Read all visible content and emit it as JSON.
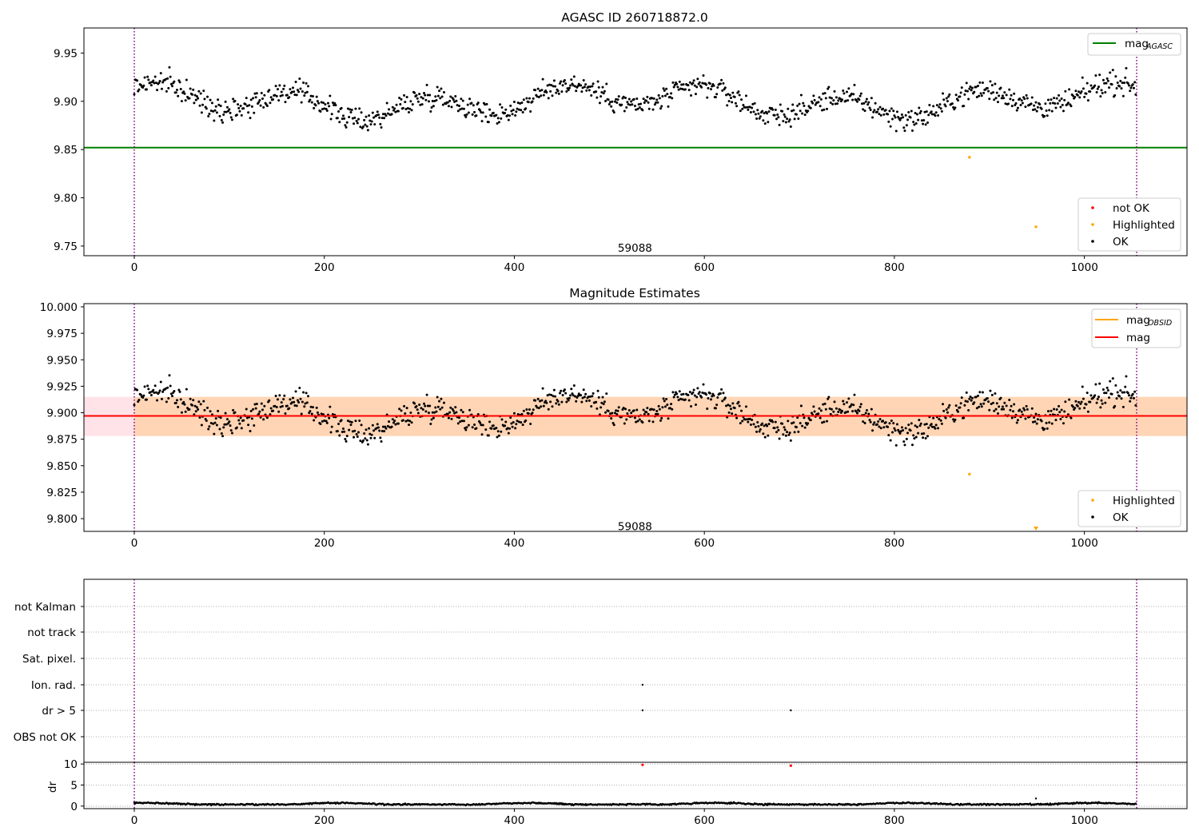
{
  "chart_data": [
    {
      "type": "scatter",
      "title": "AGASC ID 260718872.0",
      "xlim": [
        -53,
        1108
      ],
      "ylim": [
        9.74,
        9.976
      ],
      "xticks": [
        0,
        200,
        400,
        600,
        800,
        1000,
        1200
      ],
      "yticks": [
        9.75,
        9.8,
        9.85,
        9.9,
        9.95
      ],
      "ytick_labels": [
        "9.75",
        "9.80",
        "9.85",
        "9.90",
        "9.95"
      ],
      "vlines": [
        0,
        1055
      ],
      "annotation": {
        "text": "59088",
        "x": 527,
        "y": 9.745
      },
      "hlines": [
        {
          "name": "mag_AGASC",
          "y": 9.852,
          "color": "#008000",
          "xmax": 1108
        }
      ],
      "series": [
        {
          "name": "OK",
          "color": "#000000",
          "generated_count": 1055,
          "base": 9.9,
          "amplitude": 0.02,
          "noise": 0.02
        },
        {
          "name": "Highlighted",
          "color": "#ffa500",
          "x": [
            879,
            949
          ],
          "y": [
            9.842,
            9.77
          ]
        },
        {
          "name": "not OK",
          "color": "#ff0000",
          "x": [],
          "y": []
        }
      ],
      "legend": {
        "line_label_main": "mag",
        "line_label_sub": "AGASC",
        "points": [
          "not OK",
          "Highlighted",
          "OK"
        ],
        "line_position": "top-right",
        "points_position": "bottom-right"
      }
    },
    {
      "type": "scatter",
      "title": "Magnitude Estimates",
      "xlim": [
        -53,
        1108
      ],
      "ylim": [
        9.788,
        10.003
      ],
      "xticks": [
        0,
        200,
        400,
        600,
        800,
        1000,
        1200
      ],
      "yticks": [
        9.8,
        9.825,
        9.85,
        9.875,
        9.9,
        9.925,
        9.95,
        9.975,
        10.0
      ],
      "ytick_labels": [
        "9.800",
        "9.825",
        "9.850",
        "9.875",
        "9.900",
        "9.925",
        "9.950",
        "9.975",
        "10.000"
      ],
      "vlines": [
        0,
        1055
      ],
      "annotation": {
        "text": "59088",
        "x": 527,
        "y": 9.793
      },
      "bands": [
        {
          "name": "mag band",
          "y0": 9.878,
          "y1": 9.915,
          "x0": -53,
          "x1": 1108,
          "color": "#ffc0cb"
        },
        {
          "name": "mag_OBSID band",
          "y0": 9.878,
          "y1": 9.915,
          "x0": 0,
          "x1": 1108,
          "color": "#ffa500"
        }
      ],
      "hlines": [
        {
          "name": "mag_OBSID",
          "y": 9.897,
          "color": "#ffa500",
          "xmin": 0,
          "xmax": 1108
        },
        {
          "name": "mag",
          "y": 9.897,
          "color": "#ff0000",
          "xmin": -53,
          "xmax": 1108
        }
      ],
      "series": [
        {
          "name": "OK",
          "color": "#000000",
          "generated_count": 1055,
          "base": 9.9,
          "amplitude": 0.02,
          "noise": 0.02
        },
        {
          "name": "Highlighted",
          "color": "#ffa500",
          "x": [
            879
          ],
          "y": [
            9.842
          ]
        }
      ],
      "legend": {
        "lines": [
          {
            "main": "mag",
            "sub": "OBSID",
            "color": "#ffa500"
          },
          {
            "main": "mag",
            "sub": "",
            "color": "#ff0000"
          }
        ],
        "points": [
          "Highlighted",
          "OK"
        ]
      },
      "offscale_marker": {
        "x": 949,
        "color": "#ffa500"
      }
    },
    {
      "type": "scatter",
      "title": "",
      "xlim": [
        -53,
        1108
      ],
      "categories": [
        "not Kalman",
        "not track",
        "Sat. pixel.",
        "Ion. rad.",
        "dr > 5",
        "OBS not OK"
      ],
      "flag_points": [
        {
          "category": "Ion. rad.",
          "x": 535
        },
        {
          "category": "dr > 5",
          "x": 535
        },
        {
          "category": "dr > 5",
          "x": 691
        }
      ],
      "vlines": [
        0,
        1055
      ]
    },
    {
      "type": "scatter",
      "title": "",
      "ylabel": "dr",
      "xlim": [
        -53,
        1108
      ],
      "ylim": [
        -0.6,
        10.4
      ],
      "yticks": [
        0,
        5,
        10
      ],
      "ytick_labels": [
        "0",
        "5",
        "10"
      ],
      "xticks": [
        0,
        200,
        400,
        600,
        800,
        1000,
        1200
      ],
      "vlines": [
        0,
        1055
      ],
      "series": [
        {
          "name": "dr",
          "color": "#000000",
          "generated_count": 1055,
          "base": 0.5,
          "amplitude": 0.3,
          "noise": 0.15
        },
        {
          "name": "dr outliers",
          "color": "#ff0000",
          "x": [
            535,
            691
          ],
          "y": [
            9.8,
            9.6
          ]
        },
        {
          "name": "dr spike",
          "color": "#000000",
          "x": [
            949
          ],
          "y": [
            1.8
          ]
        }
      ]
    }
  ]
}
